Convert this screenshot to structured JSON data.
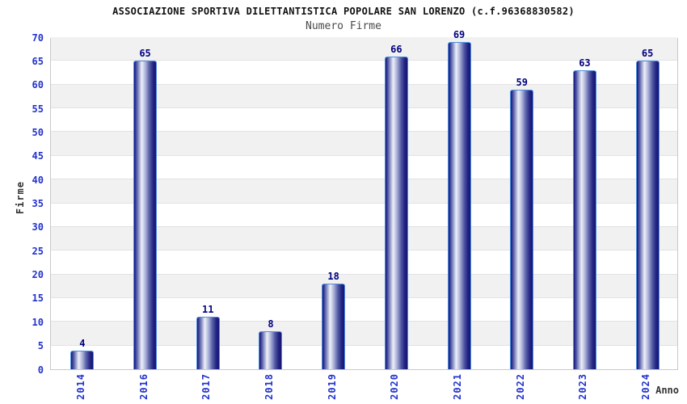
{
  "chart_data": {
    "type": "bar",
    "title": "ASSOCIAZIONE SPORTIVA DILETTANTISTICA POPOLARE SAN LORENZO (c.f.96368830582)",
    "subtitle": "Numero Firme",
    "xlabel": "Anno",
    "ylabel": "Firme",
    "categories": [
      "2014",
      "2016",
      "2017",
      "2018",
      "2019",
      "2020",
      "2021",
      "2022",
      "2023",
      "2024"
    ],
    "values": [
      4,
      65,
      11,
      8,
      18,
      66,
      69,
      59,
      63,
      65
    ],
    "ylim": [
      0,
      70
    ],
    "ytick_step": 5,
    "grid": true,
    "legend": false,
    "band_fill": "alternating horizontal bands, gray on odd 5-unit rows from bottom",
    "colors": {
      "title": "#111111",
      "subtitle": "#4a4a4a",
      "tick_label_blue": "#2233cc",
      "value_label": "#000080",
      "axis_label": "#333333",
      "bar_dark": "#14147a",
      "bar_light": "#eef1f9",
      "bar_border": "#4d8fe0",
      "band_gray": "#f1f1f1",
      "grid_line": "#e2e2e2",
      "plot_border": "#c9c9c9"
    }
  }
}
